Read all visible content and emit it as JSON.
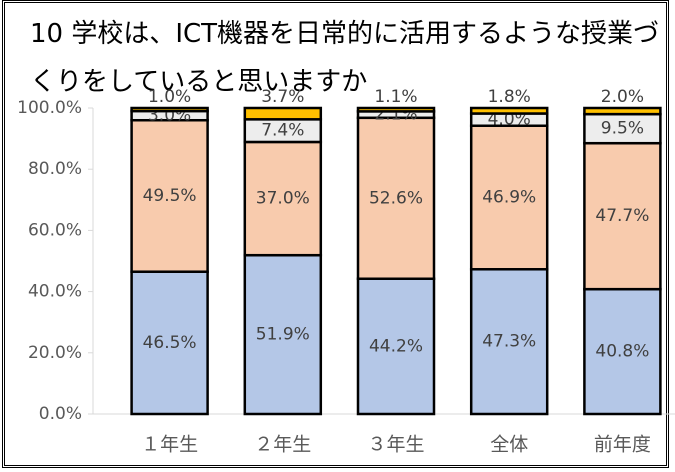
{
  "chart_data": {
    "type": "stacked_bar",
    "title": "10 学校は、ICT機器を日常的に活用するような授業づくりをしていると思いますか",
    "categories": [
      "１年生",
      "２年生",
      "３年生",
      "全体",
      "前年度"
    ],
    "series": [
      {
        "color": "#b4c7e7",
        "values": [
          46.5,
          51.9,
          44.2,
          47.3,
          40.8
        ],
        "value_labels": [
          "46.5%",
          "51.9%",
          "44.2%",
          "47.3%",
          "40.8%"
        ]
      },
      {
        "color": "#f8cbad",
        "values": [
          49.5,
          37.0,
          52.6,
          46.9,
          47.7
        ],
        "value_labels": [
          "49.5%",
          "37.0%",
          "52.6%",
          "46.9%",
          "47.7%"
        ]
      },
      {
        "color": "#ededed",
        "values": [
          3.0,
          7.4,
          2.1,
          4.0,
          9.5
        ],
        "value_labels": [
          "3.0%",
          "7.4%",
          "2.1%",
          "4.0%",
          "9.5%"
        ]
      },
      {
        "color": "#ffc000",
        "values": [
          1.0,
          3.7,
          1.1,
          1.8,
          2.0
        ],
        "value_labels": [
          "1.0%",
          "3.7%",
          "1.1%",
          "1.8%",
          "2.0%"
        ]
      }
    ],
    "ylim": [
      0,
      100
    ],
    "yticks": [
      {
        "value": 0,
        "label": "0.0%"
      },
      {
        "value": 20,
        "label": "20.0%"
      },
      {
        "value": 40,
        "label": "40.0%"
      },
      {
        "value": 60,
        "label": "60.0%"
      },
      {
        "value": 80,
        "label": "80.0%"
      },
      {
        "value": 100,
        "label": "100.0%"
      }
    ]
  }
}
